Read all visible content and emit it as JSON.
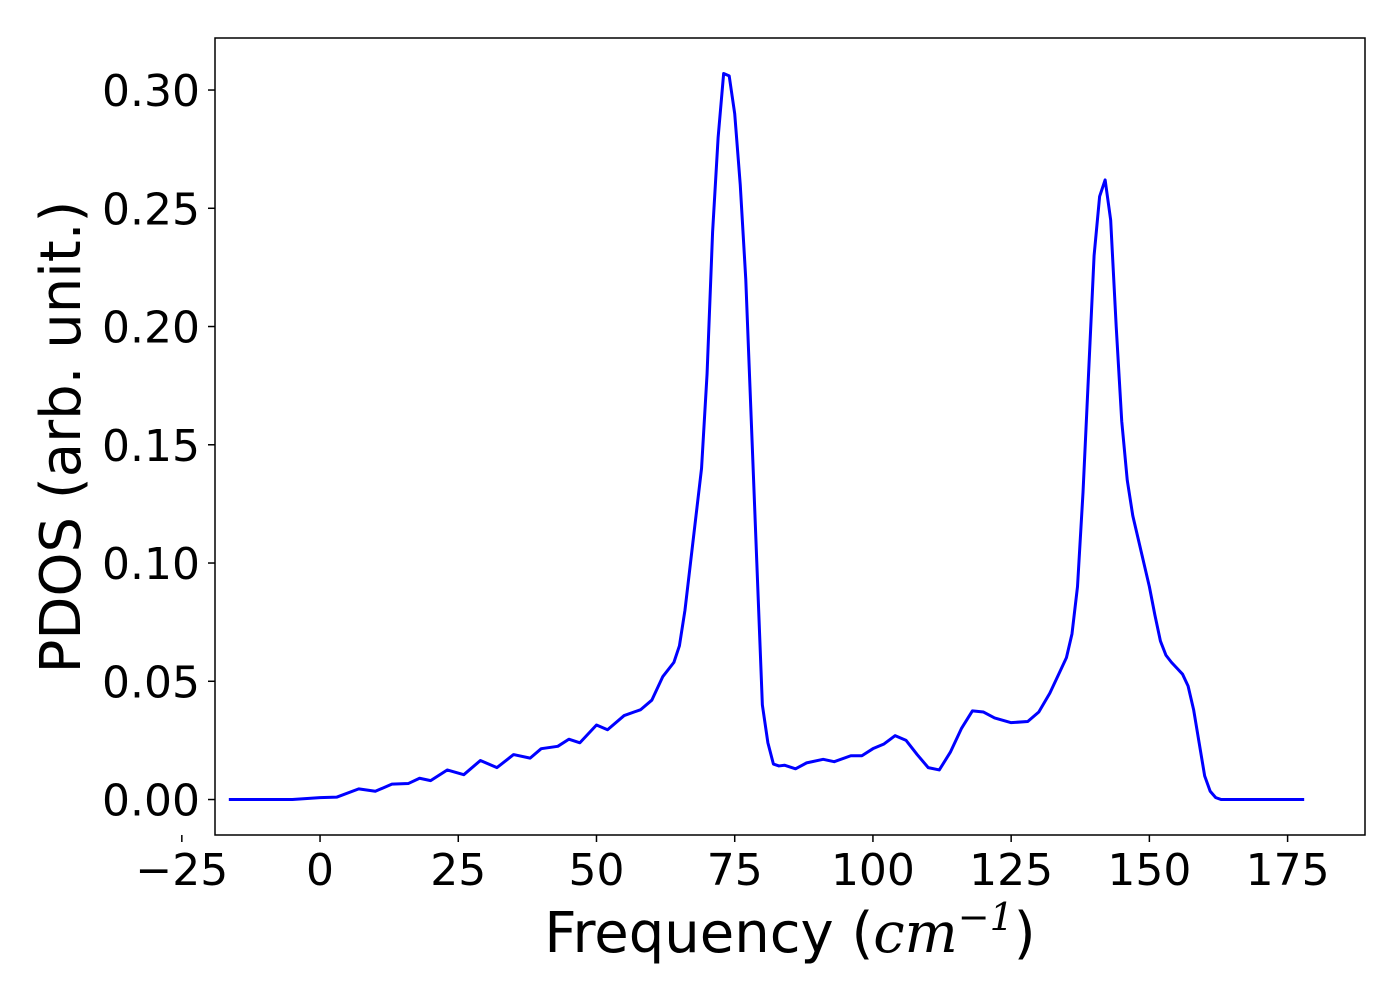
{
  "chart_data": {
    "type": "line",
    "title": "",
    "xlabel": "Frequency",
    "xlabel_unit_base": "cm",
    "xlabel_unit_exponent": "−1",
    "ylabel": "PDOS (arb. unit.)",
    "xlim": [
      -19,
      189
    ],
    "ylim": [
      -0.015,
      0.322
    ],
    "x_ticks": [
      -25,
      0,
      25,
      50,
      75,
      100,
      125,
      150,
      175
    ],
    "x_tick_labels": [
      "−25",
      "0",
      "25",
      "50",
      "75",
      "100",
      "125",
      "150",
      "175"
    ],
    "y_ticks": [
      0.0,
      0.05,
      0.1,
      0.15,
      0.2,
      0.25,
      0.3
    ],
    "y_tick_labels": [
      "0.00",
      "0.05",
      "0.10",
      "0.15",
      "0.20",
      "0.25",
      "0.30"
    ],
    "grid": false,
    "legend": "none",
    "series": [
      {
        "color": "#0000ff",
        "x": [
          -16.5,
          -5,
          0,
          3,
          7,
          10,
          13,
          16,
          18,
          20,
          23,
          26,
          29,
          32,
          35,
          38,
          40,
          43,
          45,
          47,
          50,
          52,
          55,
          58,
          60,
          62,
          64,
          65,
          66,
          67,
          68,
          69,
          70,
          71,
          72,
          73,
          74,
          75,
          76,
          77,
          78,
          79,
          80,
          81,
          82,
          83,
          84,
          86,
          88,
          91,
          93,
          96,
          98,
          100,
          102,
          104,
          106,
          108,
          110,
          112,
          114,
          116,
          118,
          120,
          122,
          125,
          128,
          130,
          132,
          134,
          135,
          136,
          137,
          138,
          139,
          140,
          141,
          142,
          143,
          144,
          145,
          146,
          147,
          148,
          149,
          150,
          151,
          152,
          153,
          154,
          155,
          156,
          157,
          158,
          159,
          160,
          161,
          162,
          163,
          164,
          165,
          167,
          170,
          178
        ],
        "y": [
          0.0,
          0.0,
          0.0008,
          0.001,
          0.0045,
          0.0035,
          0.0065,
          0.0068,
          0.009,
          0.008,
          0.0125,
          0.0105,
          0.0165,
          0.0135,
          0.019,
          0.0175,
          0.0215,
          0.0225,
          0.0255,
          0.024,
          0.0315,
          0.0295,
          0.0355,
          0.038,
          0.042,
          0.052,
          0.058,
          0.065,
          0.08,
          0.1,
          0.12,
          0.14,
          0.18,
          0.24,
          0.28,
          0.307,
          0.306,
          0.29,
          0.26,
          0.22,
          0.16,
          0.1,
          0.04,
          0.024,
          0.015,
          0.0142,
          0.0145,
          0.013,
          0.0155,
          0.017,
          0.016,
          0.0185,
          0.0185,
          0.0215,
          0.0235,
          0.027,
          0.025,
          0.019,
          0.0135,
          0.0125,
          0.02,
          0.03,
          0.0375,
          0.037,
          0.0345,
          0.0325,
          0.033,
          0.037,
          0.045,
          0.055,
          0.06,
          0.07,
          0.09,
          0.13,
          0.18,
          0.23,
          0.255,
          0.262,
          0.245,
          0.2,
          0.16,
          0.135,
          0.12,
          0.11,
          0.1,
          0.09,
          0.078,
          0.067,
          0.061,
          0.058,
          0.0555,
          0.053,
          0.048,
          0.038,
          0.024,
          0.01,
          0.0035,
          0.0008,
          0.0,
          0.0,
          0.0,
          0.0,
          0.0,
          0.0
        ]
      }
    ]
  }
}
